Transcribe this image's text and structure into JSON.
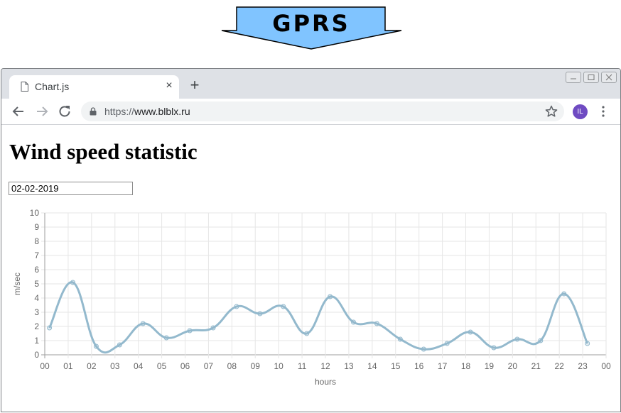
{
  "banner": {
    "label": "GPRS",
    "color": "#80c4ff"
  },
  "browser": {
    "tab": {
      "title": "Chart.js",
      "close": "×",
      "favicon": "page-icon"
    },
    "new_tab": "+",
    "url": {
      "scheme": "https://",
      "host": "www.blblx.ru"
    },
    "profile_initials": "IL",
    "profile_color": "#6f4bc2"
  },
  "page": {
    "title": "Wind speed statistic",
    "date_value": "02-02-2019"
  },
  "chart_data": {
    "type": "line",
    "xlabel": "hours",
    "ylabel": "m/sec",
    "x_tick_labels": [
      "00",
      "01",
      "02",
      "03",
      "04",
      "05",
      "06",
      "07",
      "08",
      "09",
      "10",
      "11",
      "12",
      "13",
      "14",
      "15",
      "16",
      "17",
      "18",
      "19",
      "20",
      "21",
      "22",
      "23",
      "00"
    ],
    "y_ticks": [
      0,
      1,
      2,
      3,
      4,
      5,
      6,
      7,
      8,
      9,
      10
    ],
    "ylim": [
      0,
      10
    ],
    "xlim": [
      0,
      24
    ],
    "grid": true,
    "series": [
      {
        "color": "#93b9cd",
        "x": [
          0.2,
          1.2,
          2.2,
          3.2,
          4.2,
          5.2,
          6.2,
          7.2,
          8.2,
          9.2,
          10.2,
          11.2,
          12.2,
          13.2,
          14.2,
          15.2,
          16.2,
          17.2,
          18.2,
          19.2,
          20.2,
          21.2,
          22.2,
          23.2
        ],
        "values": [
          1.9,
          5.1,
          0.6,
          0.7,
          2.2,
          1.2,
          1.7,
          1.9,
          3.4,
          2.9,
          3.4,
          1.5,
          4.1,
          2.3,
          2.2,
          1.1,
          0.4,
          0.8,
          1.6,
          0.5,
          1.1,
          1.0,
          4.3,
          0.8
        ]
      }
    ]
  }
}
